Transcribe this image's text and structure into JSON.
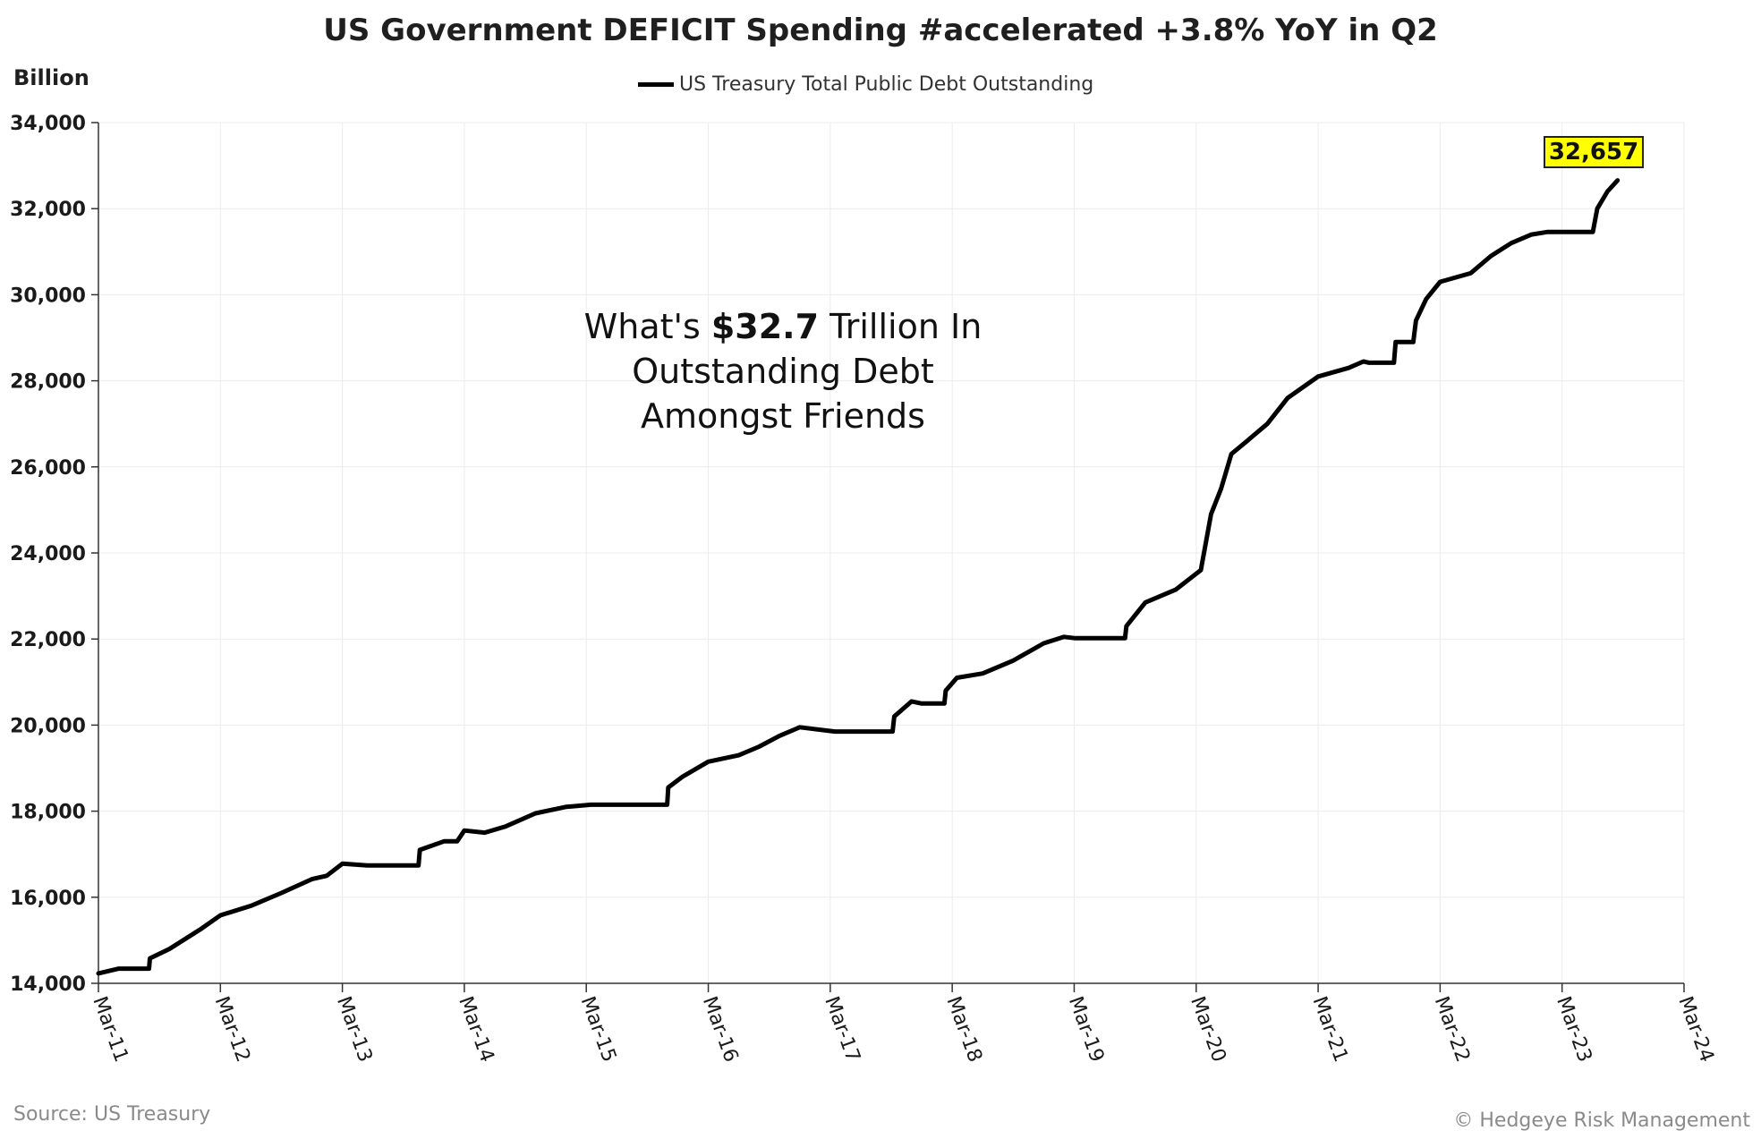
{
  "header": {
    "title": "US Government DEFICIT Spending #accelerated +3.8% YoY in Q2",
    "unit": "Billion"
  },
  "legend": {
    "label": "US Treasury Total Public Debt Outstanding",
    "color": "#000000"
  },
  "annotation": {
    "line1_pre": "What's ",
    "line1_bold": "$32.7",
    "line1_post": " Trillion In",
    "line2": "Outstanding Debt",
    "line3": "Amongst Friends"
  },
  "last_value_label": "32,657",
  "footer": {
    "source": "Source: US Treasury",
    "copyright": "© Hedgeye Risk Management"
  },
  "chart_data": {
    "type": "line",
    "title": "US Government DEFICIT Spending #accelerated +3.8% YoY in Q2",
    "ylabel": "Billion",
    "ylim": [
      14000,
      34000
    ],
    "yticks": [
      14000,
      16000,
      18000,
      20000,
      22000,
      24000,
      26000,
      28000,
      30000,
      32000,
      34000
    ],
    "ytick_labels": [
      "14,000",
      "16,000",
      "18,000",
      "20,000",
      "22,000",
      "24,000",
      "26,000",
      "28,000",
      "30,000",
      "32,000",
      "34,000"
    ],
    "xlim": [
      "2011-03",
      "2024-03"
    ],
    "xtick_labels": [
      "Mar-11",
      "Mar-12",
      "Mar-13",
      "Mar-14",
      "Mar-15",
      "Mar-16",
      "Mar-17",
      "Mar-18",
      "Mar-19",
      "Mar-20",
      "Mar-21",
      "Mar-22",
      "Mar-23",
      "Mar-24"
    ],
    "grid": true,
    "legend_position": "top-center",
    "series": [
      {
        "name": "US Treasury Total Public Debt Outstanding",
        "color": "#000000",
        "points": [
          [
            "2011-03-01",
            14230
          ],
          [
            "2011-05-01",
            14340
          ],
          [
            "2011-07-31",
            14340
          ],
          [
            "2011-08-03",
            14580
          ],
          [
            "2011-10-01",
            14800
          ],
          [
            "2012-01-01",
            15250
          ],
          [
            "2012-03-01",
            15580
          ],
          [
            "2012-06-01",
            15800
          ],
          [
            "2012-09-01",
            16100
          ],
          [
            "2012-12-01",
            16420
          ],
          [
            "2013-01-15",
            16500
          ],
          [
            "2013-03-01",
            16780
          ],
          [
            "2013-05-15",
            16740
          ],
          [
            "2013-10-16",
            16740
          ],
          [
            "2013-10-20",
            17100
          ],
          [
            "2014-01-01",
            17300
          ],
          [
            "2014-02-10",
            17300
          ],
          [
            "2014-03-01",
            17550
          ],
          [
            "2014-05-01",
            17500
          ],
          [
            "2014-07-01",
            17640
          ],
          [
            "2014-10-01",
            17950
          ],
          [
            "2015-01-01",
            18100
          ],
          [
            "2015-03-15",
            18150
          ],
          [
            "2015-10-30",
            18150
          ],
          [
            "2015-11-03",
            18550
          ],
          [
            "2015-12-15",
            18800
          ],
          [
            "2016-03-01",
            19150
          ],
          [
            "2016-06-01",
            19300
          ],
          [
            "2016-08-01",
            19500
          ],
          [
            "2016-10-01",
            19750
          ],
          [
            "2016-12-01",
            19950
          ],
          [
            "2017-03-15",
            19850
          ],
          [
            "2017-09-05",
            19850
          ],
          [
            "2017-09-10",
            20200
          ],
          [
            "2017-11-01",
            20550
          ],
          [
            "2017-12-01",
            20500
          ],
          [
            "2018-02-08",
            20500
          ],
          [
            "2018-02-12",
            20800
          ],
          [
            "2018-03-15",
            21100
          ],
          [
            "2018-06-01",
            21200
          ],
          [
            "2018-09-01",
            21500
          ],
          [
            "2018-12-01",
            21900
          ],
          [
            "2019-02-01",
            22050
          ],
          [
            "2019-03-02",
            22020
          ],
          [
            "2019-08-01",
            22020
          ],
          [
            "2019-08-05",
            22300
          ],
          [
            "2019-10-01",
            22850
          ],
          [
            "2020-01-01",
            23150
          ],
          [
            "2020-03-15",
            23600
          ],
          [
            "2020-04-15",
            24900
          ],
          [
            "2020-05-15",
            25500
          ],
          [
            "2020-06-15",
            26300
          ],
          [
            "2020-08-01",
            26600
          ],
          [
            "2020-10-01",
            27000
          ],
          [
            "2020-12-01",
            27600
          ],
          [
            "2021-03-01",
            28100
          ],
          [
            "2021-06-01",
            28300
          ],
          [
            "2021-07-15",
            28450
          ],
          [
            "2021-08-01",
            28420
          ],
          [
            "2021-10-15",
            28420
          ],
          [
            "2021-10-20",
            28900
          ],
          [
            "2021-12-12",
            28900
          ],
          [
            "2021-12-20",
            29400
          ],
          [
            "2022-01-20",
            29900
          ],
          [
            "2022-03-01",
            30300
          ],
          [
            "2022-06-01",
            30500
          ],
          [
            "2022-08-01",
            30900
          ],
          [
            "2022-10-01",
            31200
          ],
          [
            "2022-12-01",
            31400
          ],
          [
            "2023-01-19",
            31460
          ],
          [
            "2023-06-02",
            31460
          ],
          [
            "2023-06-15",
            32000
          ],
          [
            "2023-07-15",
            32400
          ],
          [
            "2023-08-15",
            32657
          ]
        ]
      }
    ],
    "annotations": [
      "What's $32.7 Trillion In Outstanding Debt Amongst Friends"
    ],
    "last_value": 32657
  }
}
